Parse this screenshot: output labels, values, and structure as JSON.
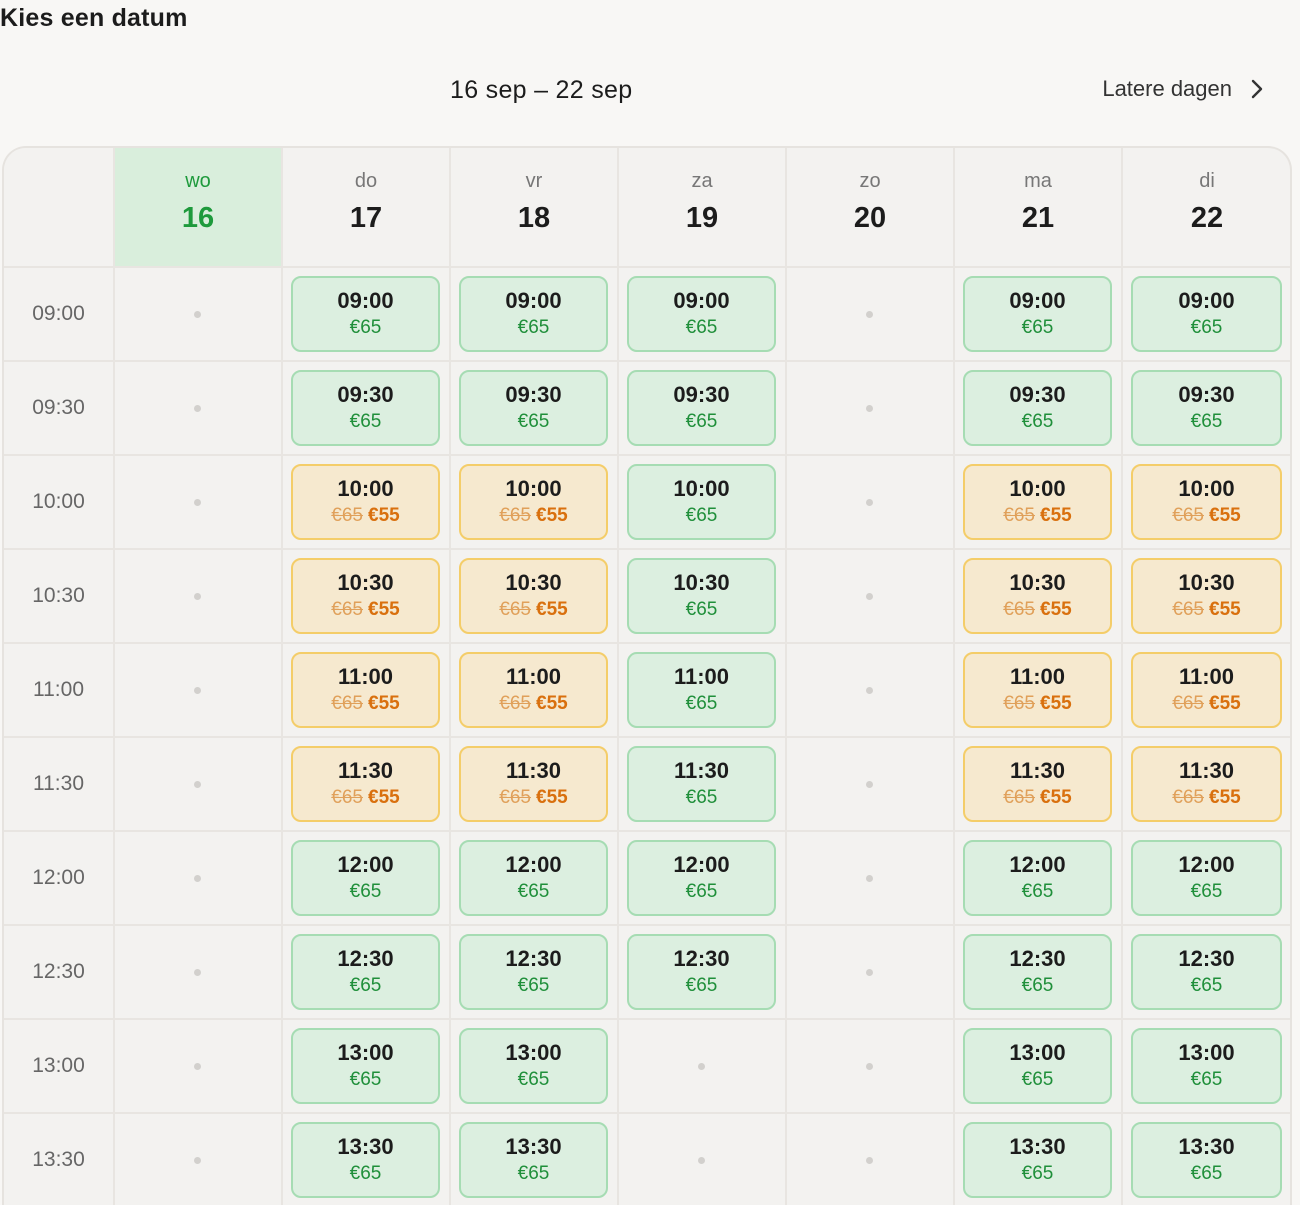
{
  "header": {
    "title": "Kies een datum",
    "week_range": "16 sep – 22 sep",
    "later_days": "Latere dagen"
  },
  "days": [
    {
      "name": "wo",
      "num": "16",
      "today": true
    },
    {
      "name": "do",
      "num": "17"
    },
    {
      "name": "vr",
      "num": "18"
    },
    {
      "name": "za",
      "num": "19"
    },
    {
      "name": "zo",
      "num": "20"
    },
    {
      "name": "ma",
      "num": "21"
    },
    {
      "name": "di",
      "num": "22"
    }
  ],
  "times": [
    "09:00",
    "09:30",
    "10:00",
    "10:30",
    "11:00",
    "11:30",
    "12:00",
    "12:30",
    "13:00",
    "13:30"
  ],
  "prices": {
    "regular": "€65",
    "discount": "€55"
  },
  "colors": {
    "available": "#dcefe0",
    "discount": "#f6e9cf",
    "today": "#1e9a3c"
  },
  "slots": [
    [
      "none",
      "regular",
      "regular",
      "regular",
      "none",
      "regular",
      "regular"
    ],
    [
      "none",
      "regular",
      "regular",
      "regular",
      "none",
      "regular",
      "regular"
    ],
    [
      "none",
      "discount",
      "discount",
      "regular",
      "none",
      "discount",
      "discount"
    ],
    [
      "none",
      "discount",
      "discount",
      "regular",
      "none",
      "discount",
      "discount"
    ],
    [
      "none",
      "discount",
      "discount",
      "regular",
      "none",
      "discount",
      "discount"
    ],
    [
      "none",
      "discount",
      "discount",
      "regular",
      "none",
      "discount",
      "discount"
    ],
    [
      "none",
      "regular",
      "regular",
      "regular",
      "none",
      "regular",
      "regular"
    ],
    [
      "none",
      "regular",
      "regular",
      "regular",
      "none",
      "regular",
      "regular"
    ],
    [
      "none",
      "regular",
      "regular",
      "none",
      "none",
      "regular",
      "regular"
    ],
    [
      "none",
      "regular",
      "regular",
      "none",
      "none",
      "regular",
      "regular"
    ]
  ]
}
